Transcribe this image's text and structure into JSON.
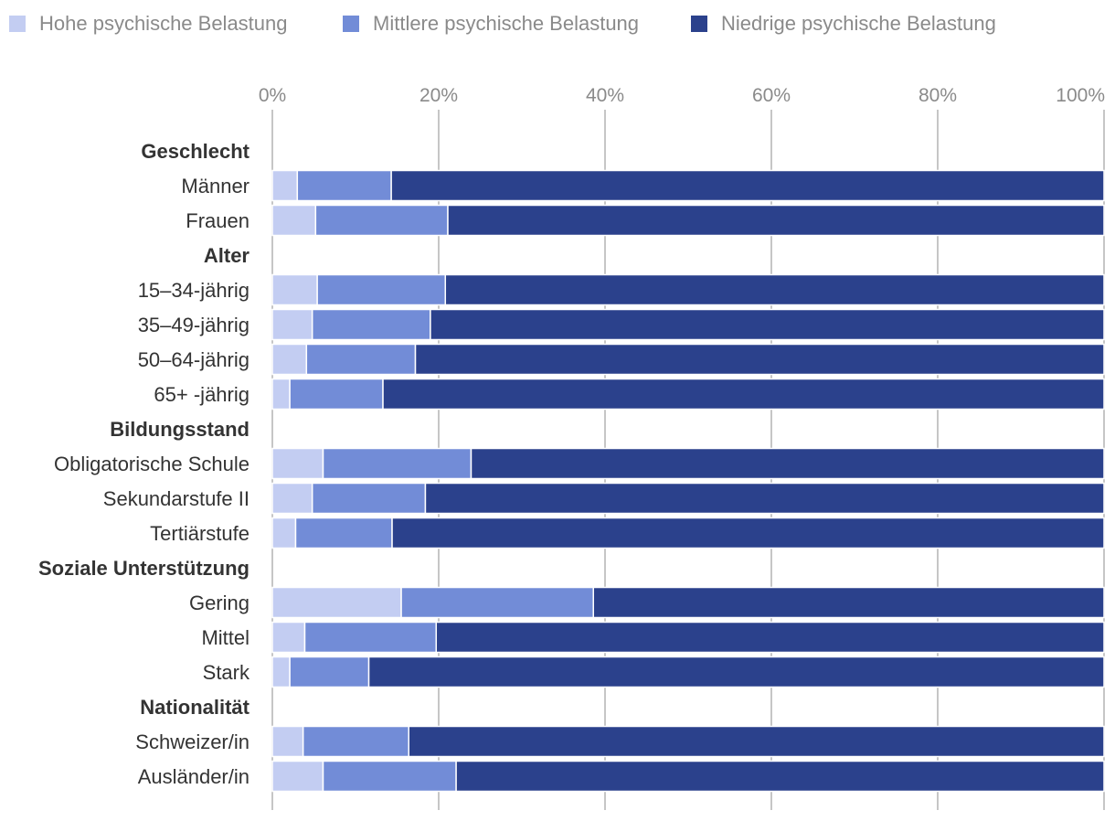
{
  "chart_data": {
    "type": "bar",
    "orientation": "horizontal",
    "stacked": true,
    "title": "",
    "xlabel": "",
    "ylabel": "",
    "xlim": [
      0,
      100
    ],
    "ticks": [
      "0%",
      "20%",
      "40%",
      "60%",
      "80%",
      "100%"
    ],
    "tick_values": [
      0,
      20,
      40,
      60,
      80,
      100
    ],
    "grid": true,
    "legend_position": "top",
    "series": [
      {
        "name": "Hohe psychische Belastung",
        "color": "#c3cdf2"
      },
      {
        "name": "Mittlere psychische Belastung",
        "color": "#728cd7"
      },
      {
        "name": "Niedrige psychische Belastung",
        "color": "#2b418c"
      }
    ],
    "rows": [
      {
        "kind": "group",
        "label": "Geschlecht"
      },
      {
        "kind": "bar",
        "label": "Männer",
        "values": [
          3.0,
          11.3,
          85.7
        ]
      },
      {
        "kind": "bar",
        "label": "Frauen",
        "values": [
          5.2,
          15.9,
          78.9
        ]
      },
      {
        "kind": "group",
        "label": "Alter"
      },
      {
        "kind": "bar",
        "label": "15–34-jährig",
        "values": [
          5.4,
          15.4,
          79.2
        ]
      },
      {
        "kind": "bar",
        "label": "35–49-jährig",
        "values": [
          4.8,
          14.2,
          81.0
        ]
      },
      {
        "kind": "bar",
        "label": "50–64-jährig",
        "values": [
          4.1,
          13.1,
          82.8
        ]
      },
      {
        "kind": "bar",
        "label": "65+ -jährig",
        "values": [
          2.1,
          11.2,
          86.7
        ]
      },
      {
        "kind": "group",
        "label": "Bildungsstand"
      },
      {
        "kind": "bar",
        "label": "Obligatorische Schule",
        "values": [
          6.1,
          17.8,
          76.1
        ]
      },
      {
        "kind": "bar",
        "label": "Sekundarstufe II",
        "values": [
          4.8,
          13.6,
          81.6
        ]
      },
      {
        "kind": "bar",
        "label": "Tertiärstufe",
        "values": [
          2.8,
          11.6,
          85.6
        ]
      },
      {
        "kind": "group",
        "label": "Soziale Unterstützung"
      },
      {
        "kind": "bar",
        "label": "Gering",
        "values": [
          15.5,
          23.1,
          61.4
        ]
      },
      {
        "kind": "bar",
        "label": "Mittel",
        "values": [
          3.9,
          15.8,
          80.3
        ]
      },
      {
        "kind": "bar",
        "label": "Stark",
        "values": [
          2.1,
          9.5,
          88.4
        ]
      },
      {
        "kind": "group",
        "label": "Nationalität"
      },
      {
        "kind": "bar",
        "label": "Schweizer/in",
        "values": [
          3.7,
          12.7,
          83.6
        ]
      },
      {
        "kind": "bar",
        "label": "Ausländer/in",
        "values": [
          6.1,
          16.0,
          77.9
        ]
      }
    ]
  }
}
